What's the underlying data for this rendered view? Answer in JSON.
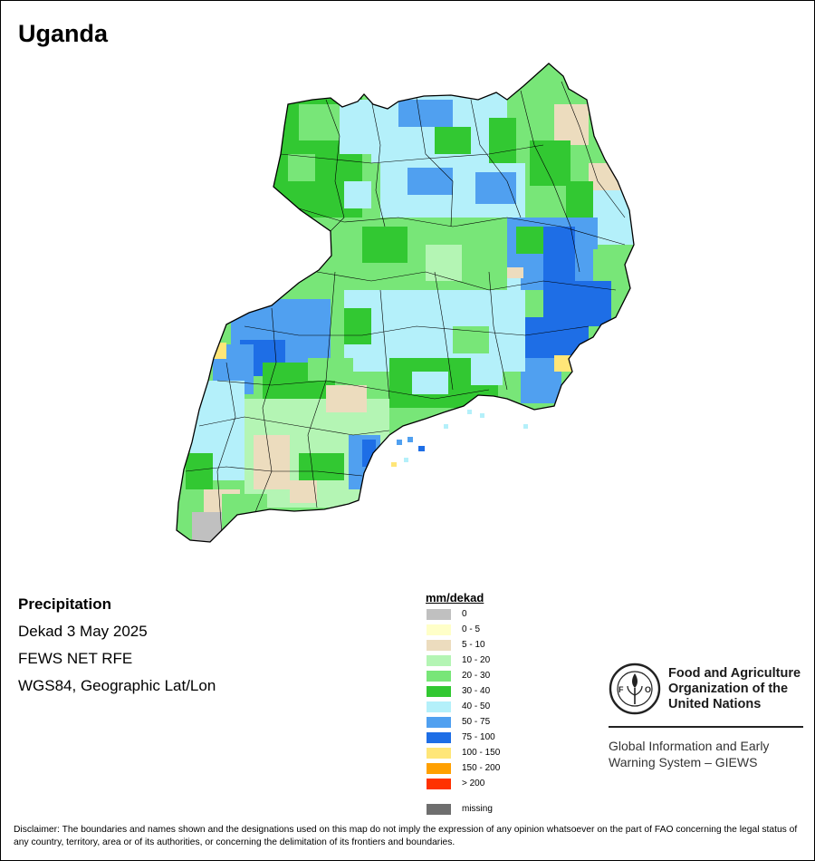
{
  "map": {
    "title": "Uganda",
    "info": {
      "heading": "Precipitation",
      "period": "Dekad 3 May 2025",
      "source": "FEWS NET RFE",
      "projection": "WGS84, Geographic Lat/Lon"
    },
    "legend": {
      "title": "mm/dekad",
      "classes": [
        {
          "label": "0",
          "color": "#c0c0c0"
        },
        {
          "label": "0 - 5",
          "color": "#ffffc8"
        },
        {
          "label": "5 - 10",
          "color": "#ecdcbe"
        },
        {
          "label": "10 - 20",
          "color": "#b4f5b4"
        },
        {
          "label": "20 - 30",
          "color": "#78e678"
        },
        {
          "label": "30 - 40",
          "color": "#32c832"
        },
        {
          "label": "40 - 50",
          "color": "#b4f0fa"
        },
        {
          "label": "50 - 75",
          "color": "#50a0f0"
        },
        {
          "label": "75 - 100",
          "color": "#1e6ee6"
        },
        {
          "label": "100 - 150",
          "color": "#ffe678"
        },
        {
          "label": "150 - 200",
          "color": "#ffa000"
        },
        {
          "label": "> 200",
          "color": "#ff3200"
        }
      ],
      "missing": {
        "label": "missing",
        "color": "#6e6e6e"
      }
    },
    "logo": {
      "org_name_line1": "Food and Agriculture",
      "org_name_line2": "Organization of the",
      "org_name_line3": "United Nations",
      "acronym": "FAO",
      "motto": "FIAT PANIS",
      "icon": "fao-emblem-icon",
      "system_line1": "Global Information and Early",
      "system_line2": "Warning System – GIEWS"
    },
    "disclaimer": "Disclaimer: The boundaries and names shown and the designations used on this map do not imply the expression of any opinion whatsoever on the part of FAO concerning the legal status of any country, territory, area or of its authorities, or concerning the delimitation of its frontiers and boundaries."
  }
}
